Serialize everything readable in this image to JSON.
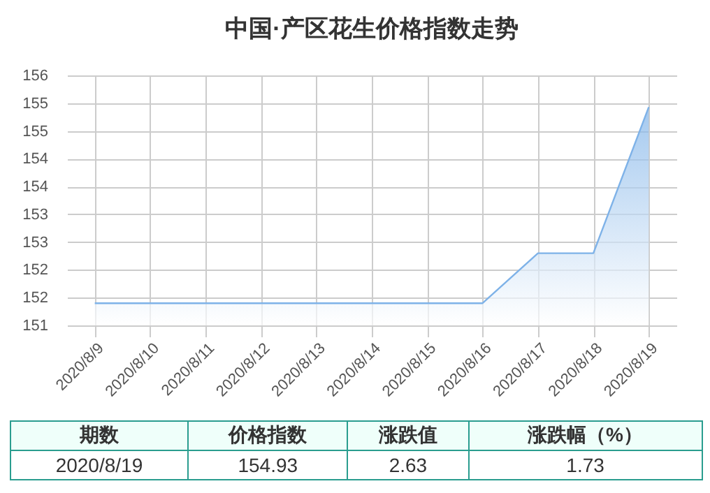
{
  "chart_data": {
    "type": "area",
    "title": "中国·产区花生价格指数走势",
    "categories": [
      "2020/8/9",
      "2020/8/10",
      "2020/8/11",
      "2020/8/12",
      "2020/8/13",
      "2020/8/14",
      "2020/8/15",
      "2020/8/16",
      "2020/8/17",
      "2020/8/18",
      "2020/8/19"
    ],
    "values": [
      151.4,
      151.4,
      151.4,
      151.4,
      151.4,
      151.4,
      151.4,
      151.4,
      152.3,
      152.3,
      154.93
    ],
    "color": "#7eb2e8",
    "ylim": [
      151,
      155.5
    ],
    "yticks": [
      {
        "value": 151,
        "label": "151"
      },
      {
        "value": 151.5,
        "label": "152"
      },
      {
        "value": 152,
        "label": "152"
      },
      {
        "value": 152.5,
        "label": "153"
      },
      {
        "value": 153,
        "label": "153"
      },
      {
        "value": 153.5,
        "label": "154"
      },
      {
        "value": 154,
        "label": "154"
      },
      {
        "value": 154.5,
        "label": "155"
      },
      {
        "value": 155,
        "label": "155"
      },
      {
        "value": 155.5,
        "label": "156"
      }
    ],
    "grid": true,
    "annotations": [
      "期数",
      "价格指数",
      "涨跌值",
      "涨跌幅（%）",
      "2020/8/19",
      "154.93",
      "2.63",
      "1.73"
    ]
  }
}
